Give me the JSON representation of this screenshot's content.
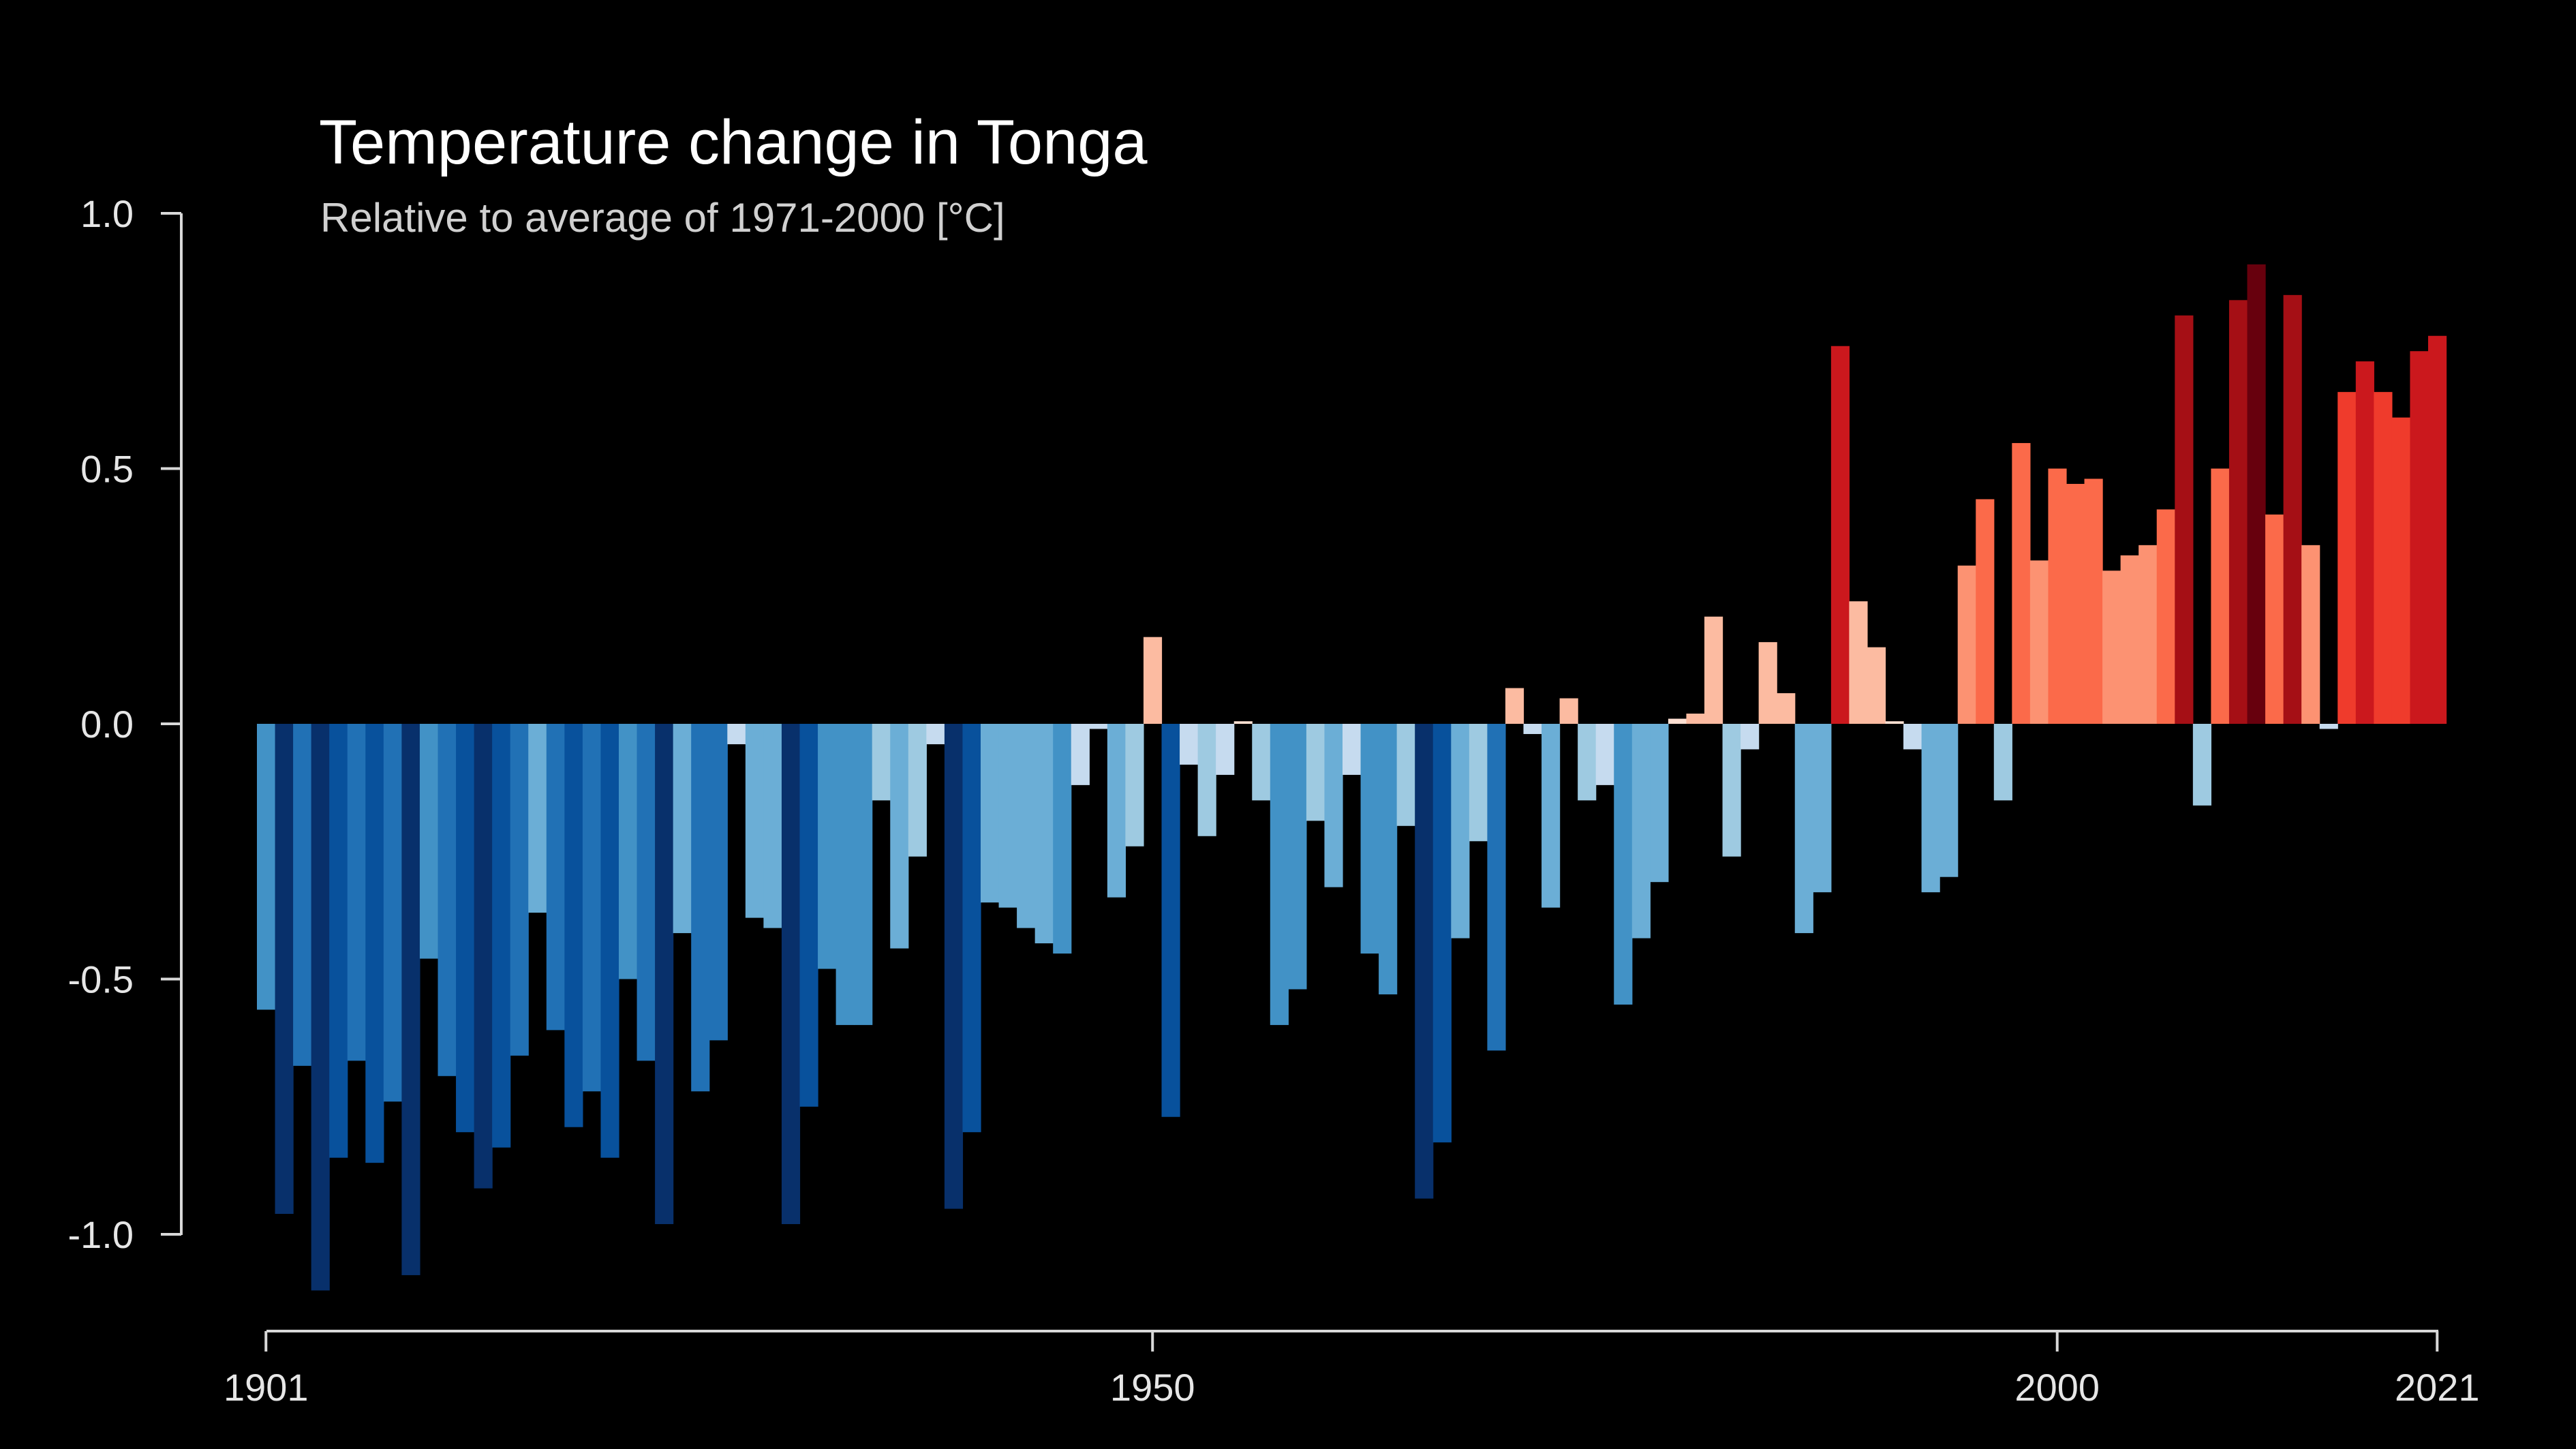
{
  "chart_data": {
    "type": "bar",
    "title": "Temperature change in Tonga",
    "subtitle": "Relative to average of 1971-2000  [°C]",
    "xlabel": "",
    "ylabel": "",
    "x_start": 1901,
    "x_end": 2021,
    "xticks": [
      1901,
      1950,
      2000,
      2021
    ],
    "xtick_labels": [
      "1901",
      "1950",
      "2000",
      "2021"
    ],
    "yticks": [
      1.0,
      0.5,
      0.0,
      -0.5,
      -1.0
    ],
    "ytick_labels": [
      "1.0",
      "0.5",
      "0.0",
      "-0.5",
      "-1.0"
    ],
    "ylim": [
      -1.15,
      1.0
    ],
    "grid": false,
    "legend": "none",
    "color_scale": {
      "cold_extreme": "#08306b",
      "cold": "#2171b5",
      "cool": "#6baed6",
      "near_zero_cool": "#c6dbef",
      "near_zero_warm": "#fcbba1",
      "warm": "#fb6a4a",
      "hot": "#cb181d",
      "hot_extreme": "#67000d"
    },
    "x": [
      1901,
      1902,
      1903,
      1904,
      1905,
      1906,
      1907,
      1908,
      1909,
      1910,
      1911,
      1912,
      1913,
      1914,
      1915,
      1916,
      1917,
      1918,
      1919,
      1920,
      1921,
      1922,
      1923,
      1924,
      1925,
      1926,
      1927,
      1928,
      1929,
      1930,
      1931,
      1932,
      1933,
      1934,
      1935,
      1936,
      1937,
      1938,
      1939,
      1940,
      1941,
      1942,
      1943,
      1944,
      1945,
      1946,
      1947,
      1948,
      1949,
      1950,
      1951,
      1952,
      1953,
      1954,
      1955,
      1956,
      1957,
      1958,
      1959,
      1960,
      1961,
      1962,
      1963,
      1964,
      1965,
      1966,
      1967,
      1968,
      1969,
      1970,
      1971,
      1972,
      1973,
      1974,
      1975,
      1976,
      1977,
      1978,
      1979,
      1980,
      1981,
      1982,
      1983,
      1984,
      1985,
      1986,
      1987,
      1988,
      1989,
      1990,
      1991,
      1992,
      1993,
      1994,
      1995,
      1996,
      1997,
      1998,
      1999,
      2000,
      2001,
      2002,
      2003,
      2004,
      2005,
      2006,
      2007,
      2008,
      2009,
      2010,
      2011,
      2012,
      2013,
      2014,
      2015,
      2016,
      2017,
      2018,
      2019,
      2020,
      2021
    ],
    "values": [
      -0.56,
      -0.96,
      -0.67,
      -1.11,
      -0.85,
      -0.66,
      -0.86,
      -0.74,
      -1.08,
      -0.46,
      -0.69,
      -0.8,
      -0.91,
      -0.83,
      -0.65,
      -0.37,
      -0.6,
      -0.79,
      -0.72,
      -0.85,
      -0.5,
      -0.66,
      -0.98,
      -0.41,
      -0.72,
      -0.62,
      -0.04,
      -0.38,
      -0.4,
      -0.98,
      -0.75,
      -0.48,
      -0.59,
      -0.59,
      -0.15,
      -0.44,
      -0.26,
      -0.04,
      -0.95,
      -0.8,
      -0.35,
      -0.36,
      -0.4,
      -0.43,
      -0.45,
      -0.12,
      -0.01,
      -0.34,
      -0.24,
      0.17,
      -0.77,
      -0.08,
      -0.22,
      -0.1,
      0.005,
      -0.15,
      -0.59,
      -0.52,
      -0.19,
      -0.32,
      -0.1,
      -0.45,
      -0.53,
      -0.2,
      -0.93,
      -0.82,
      -0.42,
      -0.23,
      -0.64,
      0.07,
      -0.02,
      -0.36,
      0.05,
      -0.15,
      -0.12,
      -0.55,
      -0.42,
      -0.31,
      0.01,
      0.02,
      0.21,
      -0.26,
      -0.05,
      0.16,
      0.06,
      -0.41,
      -0.33,
      0.74,
      0.24,
      0.15,
      0.005,
      -0.05,
      -0.33,
      -0.3,
      0.31,
      0.44,
      -0.15,
      0.55,
      0.32,
      0.5,
      0.47,
      0.48,
      0.3,
      0.33,
      0.35,
      0.42,
      0.8,
      -0.16,
      0.5,
      0.83,
      0.9,
      0.41,
      0.84,
      0.35,
      -0.01,
      0.65,
      0.71,
      0.65,
      0.6,
      0.73,
      0.76
    ]
  }
}
